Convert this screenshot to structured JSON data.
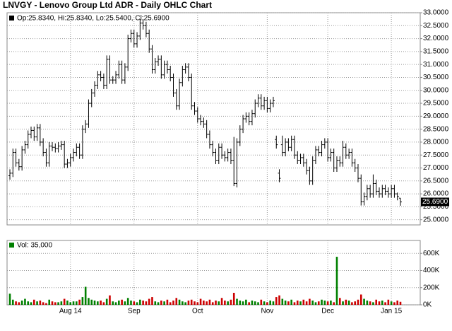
{
  "chart_data": [
    {
      "type": "ohlc",
      "title": "LNVGY - Lenovo Group Ltd ADR - Daily OHLC Chart",
      "subtitle": "Op:25.8340, Hi:25.8340, Lo:25.5400, Cl:25.6900",
      "color": "#000000",
      "last_price": {
        "value": 25.69,
        "label": "25.6900"
      },
      "open": [
        26.7,
        26.8,
        27.6,
        27.2,
        27.05,
        27.7,
        27.9,
        28.3,
        28.45,
        28.2,
        28.55,
        28.0,
        27.6,
        27.2,
        27.85,
        27.8,
        27.75,
        27.85,
        27.9,
        27.15,
        27.2,
        27.4,
        27.6,
        27.8,
        27.5,
        28.5,
        28.7,
        29.5,
        29.9,
        30.2,
        30.6,
        30.5,
        30.2,
        31.2,
        30.4,
        30.4,
        30.6,
        31.0,
        30.4,
        30.9,
        32.0,
        32.2,
        31.8,
        32.1,
        32.6,
        32.5,
        32.2,
        31.6,
        30.8,
        31.1,
        31.2,
        30.6,
        31.0,
        30.8,
        30.5,
        29.9,
        29.4,
        30.3,
        30.8,
        30.9,
        30.5,
        29.4,
        29.2,
        28.9,
        28.8,
        28.7,
        28.3,
        27.9,
        27.6,
        27.3,
        27.8,
        27.5,
        27.4,
        27.6,
        27.3,
        26.4,
        28.0,
        28.5,
        28.9,
        29.0,
        28.8,
        29.1,
        29.5,
        29.7,
        29.4,
        29.6,
        29.3,
        29.5,
        28.1,
        26.8,
        27.9,
        27.6,
        28.0,
        27.8,
        28.1,
        27.5,
        27.3,
        27.4,
        27.2,
        26.9,
        26.5,
        27.3,
        27.7,
        27.6,
        27.9,
        28.0,
        27.4,
        27.6,
        27.0,
        27.3,
        27.2,
        27.8,
        27.5,
        27.6,
        27.2,
        27.0,
        26.6,
        25.7,
        25.9,
        26.2,
        26.0,
        26.4,
        26.1,
        26.0,
        26.2,
        26.1,
        26.0,
        26.2,
        26.0,
        25.834
      ],
      "high": [
        26.95,
        27.75,
        27.75,
        27.35,
        27.85,
        28.05,
        28.45,
        28.6,
        28.6,
        28.7,
        28.7,
        28.15,
        27.75,
        28.0,
        28.0,
        27.95,
        28.0,
        28.05,
        28.05,
        27.35,
        27.55,
        27.75,
        27.95,
        27.95,
        28.65,
        28.85,
        29.65,
        30.05,
        30.35,
        30.75,
        30.75,
        30.65,
        31.35,
        31.35,
        30.55,
        30.75,
        31.15,
        31.15,
        31.05,
        32.15,
        32.35,
        32.35,
        32.25,
        32.75,
        32.75,
        32.65,
        32.35,
        31.75,
        31.25,
        31.35,
        31.35,
        31.15,
        31.15,
        30.95,
        30.65,
        30.05,
        30.45,
        30.95,
        31.05,
        31.05,
        30.65,
        29.55,
        29.35,
        29.05,
        28.95,
        28.85,
        28.45,
        28.05,
        27.75,
        27.95,
        27.95,
        27.65,
        27.75,
        27.75,
        28.2,
        28.15,
        28.65,
        29.05,
        29.15,
        29.15,
        29.25,
        29.65,
        29.85,
        29.85,
        29.75,
        29.75,
        29.65,
        29.75,
        28.25,
        26.95,
        28.25,
        28.15,
        28.15,
        28.25,
        28.25,
        27.65,
        27.55,
        27.55,
        27.35,
        27.05,
        27.45,
        27.85,
        27.85,
        28.05,
        28.15,
        28.15,
        27.75,
        27.75,
        27.45,
        27.45,
        28.05,
        27.95,
        27.75,
        27.75,
        27.35,
        27.15,
        26.75,
        26.05,
        26.35,
        26.35,
        26.75,
        26.55,
        26.25,
        26.35,
        26.35,
        26.25,
        26.35,
        26.35,
        26.05,
        25.834
      ],
      "low": [
        26.55,
        26.65,
        27.05,
        26.9,
        26.9,
        27.55,
        27.75,
        28.15,
        28.05,
        28.05,
        27.85,
        27.45,
        27.05,
        27.05,
        27.65,
        27.6,
        27.6,
        27.7,
        27.0,
        27.0,
        27.05,
        27.25,
        27.45,
        27.35,
        27.35,
        28.35,
        28.55,
        29.35,
        29.75,
        30.05,
        30.35,
        30.05,
        30.05,
        30.25,
        30.25,
        30.25,
        30.45,
        30.25,
        30.25,
        30.75,
        31.85,
        31.65,
        31.65,
        31.95,
        32.35,
        32.05,
        31.45,
        30.65,
        30.65,
        30.95,
        30.45,
        30.45,
        30.65,
        30.35,
        29.75,
        29.25,
        29.25,
        30.15,
        30.65,
        30.35,
        29.25,
        29.05,
        28.75,
        28.65,
        28.55,
        28.15,
        27.75,
        27.45,
        27.15,
        27.15,
        27.35,
        27.25,
        27.25,
        27.15,
        26.3,
        26.25,
        27.85,
        28.35,
        28.75,
        28.65,
        28.65,
        28.95,
        29.35,
        29.25,
        29.25,
        29.15,
        29.15,
        29.35,
        27.75,
        26.45,
        27.45,
        27.45,
        27.65,
        27.65,
        27.35,
        27.15,
        27.15,
        27.05,
        26.75,
        26.35,
        26.35,
        27.15,
        27.45,
        27.45,
        27.75,
        27.25,
        27.25,
        26.85,
        26.85,
        27.05,
        27.05,
        27.35,
        27.35,
        27.05,
        26.85,
        26.45,
        25.55,
        25.55,
        25.75,
        25.85,
        25.85,
        25.95,
        25.85,
        25.85,
        25.95,
        25.85,
        25.85,
        25.85,
        25.75,
        25.54
      ],
      "close": [
        26.8,
        27.6,
        27.2,
        27.05,
        27.7,
        27.9,
        28.3,
        28.45,
        28.2,
        28.55,
        28.0,
        27.6,
        27.2,
        27.85,
        27.8,
        27.75,
        27.85,
        27.9,
        27.15,
        27.2,
        27.4,
        27.6,
        27.8,
        27.5,
        28.5,
        28.7,
        29.5,
        29.9,
        30.2,
        30.6,
        30.5,
        30.2,
        31.2,
        30.4,
        30.4,
        30.6,
        31.0,
        30.4,
        30.9,
        32.0,
        32.2,
        31.8,
        32.1,
        32.6,
        32.5,
        32.2,
        31.6,
        30.8,
        31.1,
        31.2,
        30.6,
        31.0,
        30.8,
        30.5,
        29.9,
        29.4,
        30.3,
        30.8,
        30.9,
        30.5,
        29.4,
        29.2,
        28.9,
        28.8,
        28.7,
        28.3,
        27.9,
        27.6,
        27.3,
        27.8,
        27.5,
        27.4,
        27.6,
        27.3,
        26.4,
        28.0,
        28.5,
        28.9,
        29.0,
        28.8,
        29.1,
        29.5,
        29.7,
        29.4,
        29.6,
        29.3,
        29.5,
        29.6,
        27.9,
        26.6,
        27.6,
        28.0,
        27.8,
        28.1,
        27.5,
        27.3,
        27.4,
        27.2,
        26.9,
        26.5,
        27.3,
        27.7,
        27.6,
        27.9,
        28.0,
        27.4,
        27.6,
        27.0,
        27.3,
        27.2,
        27.8,
        27.5,
        27.6,
        27.2,
        27.0,
        26.6,
        25.7,
        25.9,
        26.2,
        26.0,
        26.4,
        26.1,
        26.0,
        26.2,
        26.1,
        26.0,
        26.2,
        26.0,
        25.9,
        25.69
      ],
      "ylim": [
        24.8,
        33
      ],
      "yticks": [
        {
          "value": 25,
          "label": "25.0000"
        },
        {
          "value": 25.5,
          "label": "25.5000"
        },
        {
          "value": 26,
          "label": "26.0000"
        },
        {
          "value": 26.5,
          "label": "26.5000"
        },
        {
          "value": 27,
          "label": "27.0000"
        },
        {
          "value": 27.5,
          "label": "27.5000"
        },
        {
          "value": 28,
          "label": "28.0000"
        },
        {
          "value": 28.5,
          "label": "28.5000"
        },
        {
          "value": 29,
          "label": "29.0000"
        },
        {
          "value": 29.5,
          "label": "29.5000"
        },
        {
          "value": 30,
          "label": "30.0000"
        },
        {
          "value": 30.5,
          "label": "30.5000"
        },
        {
          "value": 31,
          "label": "31.0000"
        },
        {
          "value": 31.5,
          "label": "31.5000"
        },
        {
          "value": 32,
          "label": "32.0000"
        },
        {
          "value": 32.5,
          "label": "32.5000"
        },
        {
          "value": 33,
          "label": "33.0000"
        }
      ],
      "grid": true
    },
    {
      "type": "bar",
      "label": "Vol: 35,000",
      "up_color": "#008000",
      "down_color": "#cc0000",
      "categories": [
        null,
        null,
        null,
        null,
        null,
        null,
        null,
        null,
        null,
        null,
        null,
        null,
        null,
        null,
        null,
        null,
        null,
        null,
        null,
        null,
        "Aug 14",
        null,
        null,
        null,
        null,
        null,
        null,
        null,
        null,
        null,
        null,
        null,
        null,
        null,
        null,
        null,
        null,
        null,
        null,
        null,
        null,
        "Sep",
        null,
        null,
        null,
        null,
        null,
        null,
        null,
        null,
        null,
        null,
        null,
        null,
        null,
        null,
        null,
        null,
        null,
        null,
        null,
        null,
        "Oct",
        null,
        null,
        null,
        null,
        null,
        null,
        null,
        null,
        null,
        null,
        null,
        null,
        null,
        null,
        null,
        null,
        null,
        null,
        null,
        null,
        null,
        null,
        "Nov",
        null,
        null,
        null,
        null,
        null,
        null,
        null,
        null,
        null,
        null,
        null,
        null,
        null,
        null,
        null,
        null,
        null,
        null,
        null,
        "Dec",
        null,
        null,
        null,
        null,
        null,
        null,
        null,
        null,
        null,
        null,
        null,
        null,
        null,
        null,
        null,
        null,
        null,
        null,
        null,
        null,
        "Jan 15",
        null,
        null,
        null
      ],
      "values": [
        130000,
        60000,
        40000,
        30000,
        50000,
        70000,
        40000,
        30000,
        60000,
        40000,
        50000,
        30000,
        20000,
        60000,
        40000,
        30000,
        30000,
        40000,
        70000,
        50000,
        30000,
        40000,
        40000,
        60000,
        90000,
        210000,
        80000,
        60000,
        50000,
        40000,
        50000,
        30000,
        70000,
        110000,
        40000,
        30000,
        50000,
        60000,
        40000,
        80000,
        50000,
        40000,
        30000,
        60000,
        50000,
        40000,
        70000,
        90000,
        40000,
        30000,
        50000,
        40000,
        60000,
        30000,
        50000,
        80000,
        60000,
        40000,
        30000,
        50000,
        60000,
        40000,
        30000,
        70000,
        50000,
        40000,
        60000,
        30000,
        50000,
        40000,
        80000,
        50000,
        40000,
        60000,
        140000,
        70000,
        50000,
        40000,
        60000,
        30000,
        50000,
        40000,
        30000,
        60000,
        40000,
        30000,
        50000,
        40000,
        90000,
        110000,
        70000,
        50000,
        40000,
        60000,
        30000,
        50000,
        40000,
        60000,
        40000,
        70000,
        50000,
        30000,
        40000,
        60000,
        50000,
        40000,
        50000,
        30000,
        560000,
        80000,
        40000,
        60000,
        50000,
        30000,
        40000,
        60000,
        120000,
        70000,
        50000,
        40000,
        30000,
        60000,
        40000,
        50000,
        30000,
        60000,
        40000,
        30000,
        50000,
        35000
      ],
      "ylim": [
        0,
        750000
      ],
      "yticks": [
        {
          "value": 0,
          "label": "0K"
        },
        {
          "value": 200000,
          "label": "200K"
        },
        {
          "value": 400000,
          "label": "400K"
        },
        {
          "value": 600000,
          "label": "600K"
        }
      ],
      "grid": true
    }
  ]
}
